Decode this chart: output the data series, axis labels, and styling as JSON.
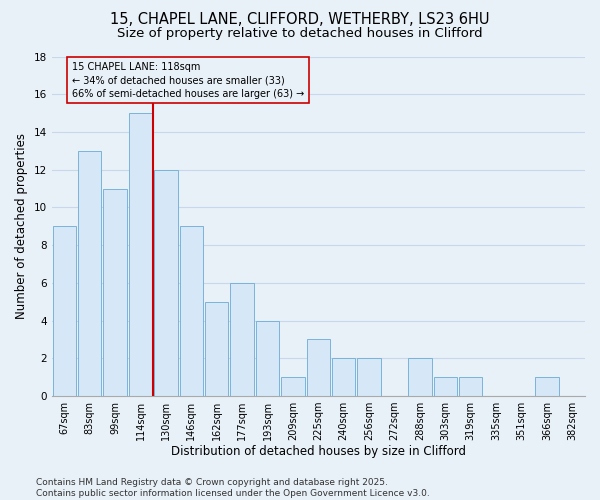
{
  "title_line1": "15, CHAPEL LANE, CLIFFORD, WETHERBY, LS23 6HU",
  "title_line2": "Size of property relative to detached houses in Clifford",
  "xlabel": "Distribution of detached houses by size in Clifford",
  "ylabel": "Number of detached properties",
  "categories": [
    "67sqm",
    "83sqm",
    "99sqm",
    "114sqm",
    "130sqm",
    "146sqm",
    "162sqm",
    "177sqm",
    "193sqm",
    "209sqm",
    "225sqm",
    "240sqm",
    "256sqm",
    "272sqm",
    "288sqm",
    "303sqm",
    "319sqm",
    "335sqm",
    "351sqm",
    "366sqm",
    "382sqm"
  ],
  "values": [
    9,
    13,
    11,
    15,
    12,
    9,
    5,
    6,
    4,
    1,
    3,
    2,
    2,
    0,
    2,
    1,
    1,
    0,
    0,
    1,
    0
  ],
  "bar_color": "#d6e8f7",
  "bar_edge_color": "#7ab3d9",
  "vline_x": 3.5,
  "vline_color": "#cc0000",
  "annotation_text": "15 CHAPEL LANE: 118sqm\n← 34% of detached houses are smaller (33)\n66% of semi-detached houses are larger (63) →",
  "annotation_box_color": "#cc0000",
  "annotation_bg": "#e8f0f8",
  "ylim": [
    0,
    18
  ],
  "yticks": [
    0,
    2,
    4,
    6,
    8,
    10,
    12,
    14,
    16,
    18
  ],
  "footnote": "Contains HM Land Registry data © Crown copyright and database right 2025.\nContains public sector information licensed under the Open Government Licence v3.0.",
  "bg_color": "#e8f0f8",
  "grid_color": "#c8d8ec",
  "title_fontsize": 10.5,
  "subtitle_fontsize": 9.5,
  "axis_label_fontsize": 8.5,
  "tick_fontsize": 7,
  "annotation_fontsize": 7,
  "footnote_fontsize": 6.5
}
